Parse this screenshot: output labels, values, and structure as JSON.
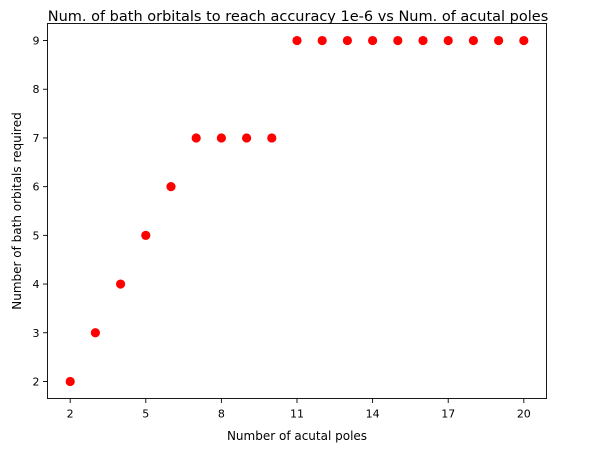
{
  "chart_data": {
    "type": "scatter",
    "title": "Num. of bath orbitals to reach accuracy 1e-6 vs Num. of acutal poles",
    "xlabel": "Number of acutal poles",
    "ylabel": "Number of bath orbitals required",
    "xlim": [
      1.1,
      20.9
    ],
    "ylim": [
      1.65,
      9.35
    ],
    "xticks": [
      2,
      5,
      8,
      11,
      14,
      17,
      20
    ],
    "yticks": [
      2,
      3,
      4,
      5,
      6,
      7,
      8,
      9
    ],
    "grid": false,
    "marker_color": "#ff0000",
    "series": [
      {
        "x": [
          2,
          3,
          4,
          5,
          6,
          7,
          8,
          9,
          10,
          11,
          12,
          13,
          14,
          15,
          16,
          17,
          18,
          19,
          20
        ],
        "y": [
          2,
          3,
          4,
          5,
          6,
          7,
          7,
          7,
          7,
          9,
          9,
          9,
          9,
          9,
          9,
          9,
          9,
          9,
          9
        ]
      }
    ]
  }
}
